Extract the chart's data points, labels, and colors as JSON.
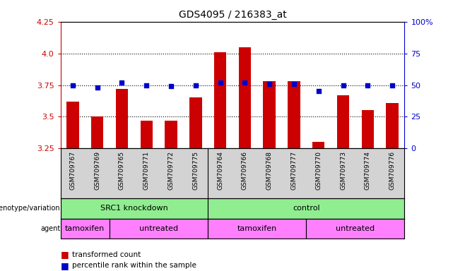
{
  "title": "GDS4095 / 216383_at",
  "samples": [
    "GSM709767",
    "GSM709769",
    "GSM709765",
    "GSM709771",
    "GSM709772",
    "GSM709775",
    "GSM709764",
    "GSM709766",
    "GSM709768",
    "GSM709777",
    "GSM709770",
    "GSM709773",
    "GSM709774",
    "GSM709776"
  ],
  "red_values": [
    3.62,
    3.5,
    3.72,
    3.47,
    3.47,
    3.65,
    4.01,
    4.05,
    3.78,
    3.78,
    3.3,
    3.67,
    3.55,
    3.61
  ],
  "blue_values": [
    50,
    48,
    52,
    50,
    49,
    50,
    52,
    52,
    51,
    51,
    45,
    50,
    50,
    50
  ],
  "ylim_left": [
    3.25,
    4.25
  ],
  "ylim_right": [
    0,
    100
  ],
  "yticks_left": [
    3.25,
    3.5,
    3.75,
    4.0,
    4.25
  ],
  "yticks_right": [
    0,
    25,
    50,
    75,
    100
  ],
  "grid_lines": [
    3.5,
    3.75,
    4.0
  ],
  "genotype_labels": [
    {
      "label": "SRC1 knockdown",
      "start": 0,
      "end": 6,
      "color": "#90EE90"
    },
    {
      "label": "control",
      "start": 6,
      "end": 14,
      "color": "#90EE90"
    }
  ],
  "agent_labels": [
    {
      "label": "tamoxifen",
      "start": 0,
      "end": 2,
      "color": "#FF80FF"
    },
    {
      "label": "untreated",
      "start": 2,
      "end": 6,
      "color": "#FF80FF"
    },
    {
      "label": "tamoxifen",
      "start": 6,
      "end": 10,
      "color": "#FF80FF"
    },
    {
      "label": "untreated",
      "start": 10,
      "end": 14,
      "color": "#FF80FF"
    }
  ],
  "bar_color": "#CC0000",
  "dot_color": "#0000CC",
  "xlabel_color": "#CC0000",
  "ylabel_right_color": "#0000CC",
  "legend_items": [
    {
      "label": "transformed count",
      "color": "#CC0000",
      "marker": "s"
    },
    {
      "label": "percentile rank within the sample",
      "color": "#0000CC",
      "marker": "s"
    }
  ],
  "row_labels": [
    "genotype/variation",
    "agent"
  ],
  "background_color": "#ffffff",
  "tick_area_color": "#D3D3D3"
}
